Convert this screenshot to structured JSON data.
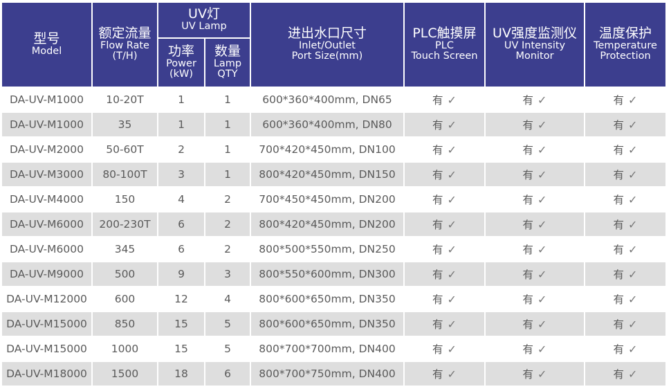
{
  "header": {
    "model": {
      "zh": "型号",
      "en": "Model"
    },
    "flow": {
      "zh": "额定流量",
      "en1": "Flow Rate",
      "en2": "(T/H)"
    },
    "uv_lamp": {
      "zh": "UV灯",
      "en": "UV Lamp"
    },
    "power": {
      "zh": "功率",
      "en1": "Power",
      "en2": "(kW)"
    },
    "qty": {
      "zh": "数量",
      "en1": "Lamp",
      "en2": "QTY"
    },
    "port": {
      "zh": "进出水口尺寸",
      "en1": "Inlet/Outlet",
      "en2": "Port Size(mm)"
    },
    "plc": {
      "zh": "PLC触摸屏",
      "en1": "PLC",
      "en2": "Touch Screen"
    },
    "monitor": {
      "zh": "UV强度监测仪",
      "en1": "UV Intensity",
      "en2": "Monitor"
    },
    "temp": {
      "zh": "温度保护",
      "en1": "Temperature",
      "en2": "Protection"
    }
  },
  "check_icon": "checkmark-icon",
  "rows": [
    [
      "DA-UV-M1000",
      "10-20T",
      "1",
      "1",
      "600*360*400mm, DN65",
      "有",
      "有",
      "有"
    ],
    [
      "DA-UV-M1000",
      "35",
      "1",
      "1",
      "600*360*400mm, DN80",
      "有",
      "有",
      "有"
    ],
    [
      "DA-UV-M2000",
      "50-60T",
      "2",
      "1",
      "700*420*450mm, DN100",
      "有",
      "有",
      "有"
    ],
    [
      "DA-UV-M3000",
      "80-100T",
      "3",
      "1",
      "800*420*450mm, DN150",
      "有",
      "有",
      "有"
    ],
    [
      "DA-UV-M4000",
      "150",
      "4",
      "2",
      "700*450*450mm, DN200",
      "有",
      "有",
      "有"
    ],
    [
      "DA-UV-M6000",
      "200-230T",
      "6",
      "2",
      "800*420*450mm, DN200",
      "有",
      "有",
      "有"
    ],
    [
      "DA-UV-M6000",
      "345",
      "6",
      "2",
      "800*500*550mm, DN250",
      "有",
      "有",
      "有"
    ],
    [
      "DA-UV-M9000",
      "500",
      "9",
      "3",
      "800*550*600mm, DN300",
      "有",
      "有",
      "有"
    ],
    [
      "DA-UV-M12000",
      "600",
      "12",
      "4",
      "800*600*650mm, DN350",
      "有",
      "有",
      "有"
    ],
    [
      "DA-UV-M15000",
      "850",
      "15",
      "5",
      "800*600*650mm, DN350",
      "有",
      "有",
      "有"
    ],
    [
      "DA-UV-M15000",
      "1000",
      "15",
      "5",
      "800*700*700mm, DN400",
      "有",
      "有",
      "有"
    ],
    [
      "DA-UV-M18000",
      "1500",
      "18",
      "6",
      "800*700*750mm, DN400",
      "有",
      "有",
      "有"
    ]
  ]
}
